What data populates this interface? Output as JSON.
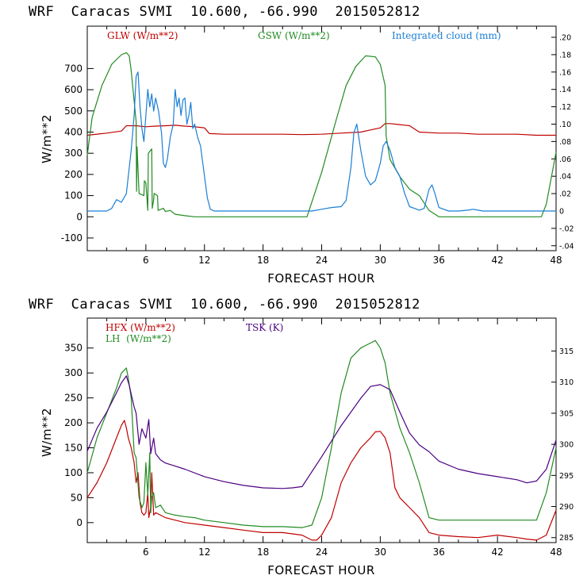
{
  "chart_data": [
    {
      "type": "line",
      "title": "WRF  Caracas SVMI  10.600, -66.990  2015052812",
      "xlabel": "FORECAST HOUR",
      "ylabel": "W/m**2",
      "y2label": "",
      "xlim": [
        0,
        48
      ],
      "ylim": [
        -160,
        900
      ],
      "y2lim": [
        -0.0457,
        0.2128
      ],
      "xticks": [
        "6",
        "12",
        "18",
        "24",
        "30",
        "36",
        "42",
        "48"
      ],
      "yticks": [
        "-100",
        "0",
        "100",
        "200",
        "300",
        "400",
        "500",
        "600",
        "700"
      ],
      "y2ticks": [
        "-.04",
        "-.02",
        "0",
        ".02",
        ".04",
        ".06",
        ".08",
        ".10",
        ".12",
        ".14",
        ".16",
        ".18",
        ".20"
      ],
      "series": [
        {
          "name": "GLW (W/m**2)",
          "color": "#c00000",
          "axis": "left",
          "x": [
            0,
            2,
            3.5,
            4,
            5,
            6,
            7,
            8,
            9,
            10,
            11,
            12,
            12.5,
            14,
            16,
            18,
            20,
            22,
            24,
            26,
            28,
            29,
            30,
            30.5,
            31,
            32,
            33,
            34,
            36,
            38,
            40,
            42,
            44,
            46,
            48
          ],
          "y": [
            385,
            395,
            405,
            430,
            430,
            425,
            428,
            430,
            432,
            428,
            425,
            420,
            393,
            390,
            390,
            390,
            390,
            388,
            390,
            395,
            400,
            410,
            420,
            440,
            440,
            435,
            430,
            400,
            395,
            395,
            390,
            390,
            390,
            385,
            385
          ]
        },
        {
          "name": "GSW (W/m**2)",
          "color": "#228b22",
          "axis": "left",
          "x": [
            0,
            0.5,
            1.5,
            2.5,
            3.5,
            4,
            4.3,
            4.5,
            5,
            5.05,
            5.1,
            5.3,
            5.8,
            5.85,
            6,
            6.2,
            6.25,
            6.6,
            6.65,
            6.8,
            6.85,
            7.2,
            7.25,
            7.8,
            8,
            8.5,
            9,
            10,
            11,
            12,
            13,
            14,
            16,
            18,
            20,
            22,
            22.5,
            24,
            25.5,
            26.5,
            27.5,
            28.5,
            29.5,
            30,
            30.5,
            30.6,
            31,
            32,
            33,
            34,
            35,
            36,
            38,
            40,
            42,
            44,
            46.5,
            47,
            48
          ],
          "y": [
            290,
            470,
            620,
            720,
            765,
            775,
            760,
            690,
            450,
            120,
            330,
            110,
            100,
            170,
            160,
            30,
            300,
            320,
            40,
            80,
            110,
            100,
            30,
            40,
            25,
            30,
            12,
            5,
            0,
            0,
            0,
            0,
            0,
            0,
            0,
            0,
            0,
            210,
            460,
            620,
            710,
            760,
            755,
            720,
            620,
            380,
            270,
            190,
            130,
            100,
            30,
            0,
            0,
            0,
            0,
            0,
            0,
            60,
            305
          ]
        },
        {
          "name": "Integrated cloud (mm)",
          "color": "#1a7ed6",
          "axis": "right",
          "x": [
            0,
            2,
            2.5,
            3,
            3.5,
            4,
            4.5,
            4.8,
            5,
            5.2,
            5.4,
            5.6,
            5.8,
            6,
            6.2,
            6.4,
            6.6,
            6.8,
            7,
            7.3,
            7.6,
            7.8,
            8,
            8.2,
            8.5,
            8.8,
            9,
            9.2,
            9.4,
            9.6,
            9.8,
            10,
            10.2,
            10.4,
            10.6,
            10.8,
            11,
            11.3,
            11.6,
            12,
            12.3,
            12.6,
            13,
            14,
            16,
            18,
            20,
            22,
            23,
            24,
            25,
            26,
            26.5,
            27,
            27.3,
            27.6,
            28,
            28.5,
            29,
            29.5,
            30,
            30.3,
            30.6,
            31,
            31.5,
            32,
            32.5,
            33,
            33.5,
            34,
            34.5,
            35,
            35.3,
            35.6,
            36,
            37,
            38,
            39,
            39.5,
            40,
            40.5,
            41,
            42,
            44,
            46,
            48
          ],
          "y": [
            0,
            0,
            0.003,
            0.013,
            0.01,
            0.02,
            0.07,
            0.11,
            0.155,
            0.16,
            0.12,
            0.095,
            0.08,
            0.11,
            0.14,
            0.12,
            0.135,
            0.115,
            0.13,
            0.115,
            0.09,
            0.055,
            0.05,
            0.06,
            0.085,
            0.1,
            0.14,
            0.12,
            0.13,
            0.11,
            0.128,
            0.13,
            0.1,
            0.11,
            0.125,
            0.095,
            0.1,
            0.085,
            0.075,
            0.04,
            0.015,
            0.002,
            0,
            0,
            0,
            0,
            0,
            0,
            0,
            0.002,
            0.004,
            0.005,
            0.012,
            0.05,
            0.09,
            0.1,
            0.07,
            0.04,
            0.03,
            0.035,
            0.055,
            0.075,
            0.08,
            0.07,
            0.05,
            0.04,
            0.02,
            0.005,
            0.003,
            0.001,
            0.003,
            0.025,
            0.03,
            0.02,
            0.004,
            0,
            0,
            0.001,
            0.002,
            0.001,
            0,
            0,
            0,
            0,
            0,
            0
          ]
        }
      ]
    },
    {
      "type": "line",
      "title": "WRF  Caracas SVMI  10.600, -66.990  2015052812",
      "xlabel": "FORECAST HOUR",
      "ylabel": "W/m**2",
      "xlim": [
        0,
        48
      ],
      "ylim": [
        -40,
        410
      ],
      "y2lim": [
        284.2,
        320.3
      ],
      "xticks": [
        "6",
        "12",
        "18",
        "24",
        "30",
        "36",
        "42",
        "48"
      ],
      "yticks": [
        "0",
        "50",
        "100",
        "150",
        "200",
        "250",
        "300",
        "350"
      ],
      "y2ticks": [
        "285",
        "290",
        "295",
        "300",
        "305",
        "310",
        "315"
      ],
      "series": [
        {
          "name": "HFX (W/m**2)",
          "color": "#c00000",
          "axis": "left",
          "x": [
            0,
            1,
            2,
            3,
            3.5,
            3.8,
            4,
            4.2,
            4.5,
            4.8,
            5,
            5.2,
            5.4,
            5.6,
            5.8,
            6,
            6.2,
            6.3,
            6.5,
            6.6,
            6.8,
            7,
            7.5,
            8,
            9,
            10,
            12,
            14,
            16,
            18,
            20,
            22,
            23,
            23.5,
            24,
            25,
            26,
            27,
            28,
            29,
            29.5,
            30,
            30.5,
            31,
            31.5,
            32,
            33,
            34,
            35,
            36,
            38,
            40,
            42,
            44,
            45,
            46,
            47,
            48
          ],
          "y": [
            50,
            80,
            120,
            170,
            195,
            205,
            190,
            170,
            150,
            120,
            80,
            100,
            40,
            20,
            15,
            20,
            60,
            10,
            30,
            100,
            15,
            20,
            15,
            10,
            5,
            0,
            -5,
            -10,
            -15,
            -20,
            -20,
            -25,
            -35,
            -35,
            -25,
            10,
            80,
            120,
            150,
            170,
            182,
            183,
            170,
            140,
            70,
            50,
            30,
            10,
            -20,
            -25,
            -28,
            -30,
            -25,
            -30,
            -33,
            -35,
            -25,
            25
          ]
        },
        {
          "name": "LH  (W/m**2)",
          "color": "#228b22",
          "axis": "left",
          "x": [
            0,
            1,
            2,
            3,
            3.5,
            4,
            4.2,
            4.5,
            4.8,
            5,
            5.3,
            5.6,
            5.8,
            6,
            6.2,
            6.4,
            6.5,
            6.6,
            6.8,
            7,
            7.5,
            8,
            9,
            10,
            11,
            12,
            14,
            16,
            18,
            20,
            22,
            23,
            24,
            25,
            26,
            27,
            28,
            29,
            29.5,
            30,
            30.5,
            31,
            32,
            33,
            34,
            35,
            36,
            38,
            40,
            42,
            44,
            46,
            47,
            48
          ],
          "y": [
            100,
            170,
            220,
            270,
            300,
            310,
            290,
            250,
            140,
            130,
            50,
            30,
            40,
            120,
            55,
            140,
            20,
            50,
            60,
            30,
            35,
            20,
            15,
            12,
            10,
            5,
            0,
            -5,
            -8,
            -8,
            -10,
            -5,
            50,
            150,
            260,
            330,
            350,
            360,
            365,
            350,
            320,
            260,
            190,
            140,
            80,
            10,
            5,
            5,
            5,
            5,
            5,
            5,
            60,
            150
          ]
        },
        {
          "name": "TSK (K)",
          "color": "#4b0082",
          "axis": "right",
          "x": [
            0,
            1,
            2,
            3,
            3.5,
            4,
            4.3,
            4.8,
            5,
            5.3,
            5.6,
            6,
            6.3,
            6.5,
            6.8,
            7,
            7.5,
            8,
            9,
            10,
            12,
            14,
            16,
            18,
            20,
            21,
            22,
            24,
            26,
            28,
            29,
            30,
            31,
            32,
            33,
            34,
            35,
            36,
            38,
            40,
            42,
            44,
            45,
            46,
            47,
            48
          ],
          "y": [
            298.9,
            302.6,
            305.2,
            308.3,
            309.9,
            311.0,
            309.5,
            306.0,
            305.0,
            300.0,
            302.5,
            301.0,
            304.0,
            298.5,
            301.0,
            298.5,
            297.5,
            297.0,
            296.5,
            296.0,
            294.8,
            294.0,
            293.4,
            293.0,
            292.9,
            293.0,
            293.2,
            298.0,
            303.0,
            307.4,
            309.3,
            309.6,
            308.8,
            305.2,
            301.8,
            299.9,
            298.8,
            297.3,
            296.0,
            295.3,
            294.8,
            294.3,
            293.8,
            294.1,
            296.0,
            300.7
          ]
        }
      ]
    }
  ]
}
